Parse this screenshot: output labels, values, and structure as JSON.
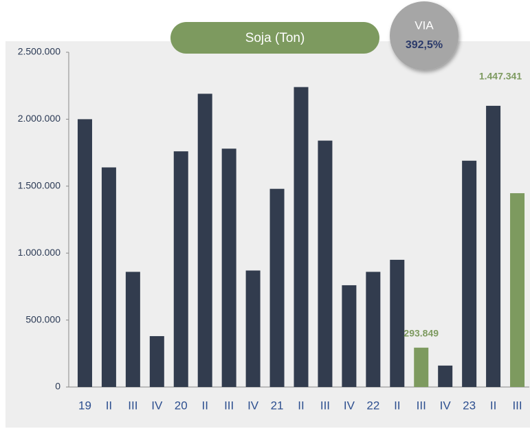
{
  "chart_data": {
    "type": "bar",
    "title": "Soja (Ton)",
    "badge": {
      "label": "VIA",
      "value": "392,5%"
    },
    "categories": [
      "19",
      "II",
      "III",
      "IV",
      "20",
      "II",
      "III",
      "IV",
      "21",
      "II",
      "III",
      "IV",
      "22",
      "II",
      "III",
      "IV",
      "23",
      "II",
      "III"
    ],
    "values": [
      2000000,
      1640000,
      860000,
      380000,
      1760000,
      2190000,
      1780000,
      870000,
      1480000,
      2240000,
      1840000,
      760000,
      860000,
      950000,
      293849,
      160000,
      1690000,
      2100000,
      1447341
    ],
    "value_labels": [
      null,
      null,
      null,
      null,
      null,
      null,
      null,
      null,
      null,
      null,
      null,
      null,
      null,
      null,
      "293.849",
      null,
      null,
      null,
      "1.447.341"
    ],
    "colors": [
      "#323c4e",
      "#323c4e",
      "#323c4e",
      "#323c4e",
      "#323c4e",
      "#323c4e",
      "#323c4e",
      "#323c4e",
      "#323c4e",
      "#323c4e",
      "#323c4e",
      "#323c4e",
      "#323c4e",
      "#323c4e",
      "#7d9a5f",
      "#323c4e",
      "#323c4e",
      "#323c4e",
      "#7d9a5f"
    ],
    "ylim": [
      0,
      2500000
    ],
    "yticks": [
      0,
      {
        "value": 500000,
        "label": "500.000"
      },
      {
        "value": 1000000,
        "label": "1.000.000"
      },
      {
        "value": 1500000,
        "label": "1.500.000"
      },
      {
        "value": 2000000,
        "label": "2.000.000"
      },
      {
        "value": 2500000,
        "label": "2.500.000"
      }
    ],
    "grid": false
  }
}
